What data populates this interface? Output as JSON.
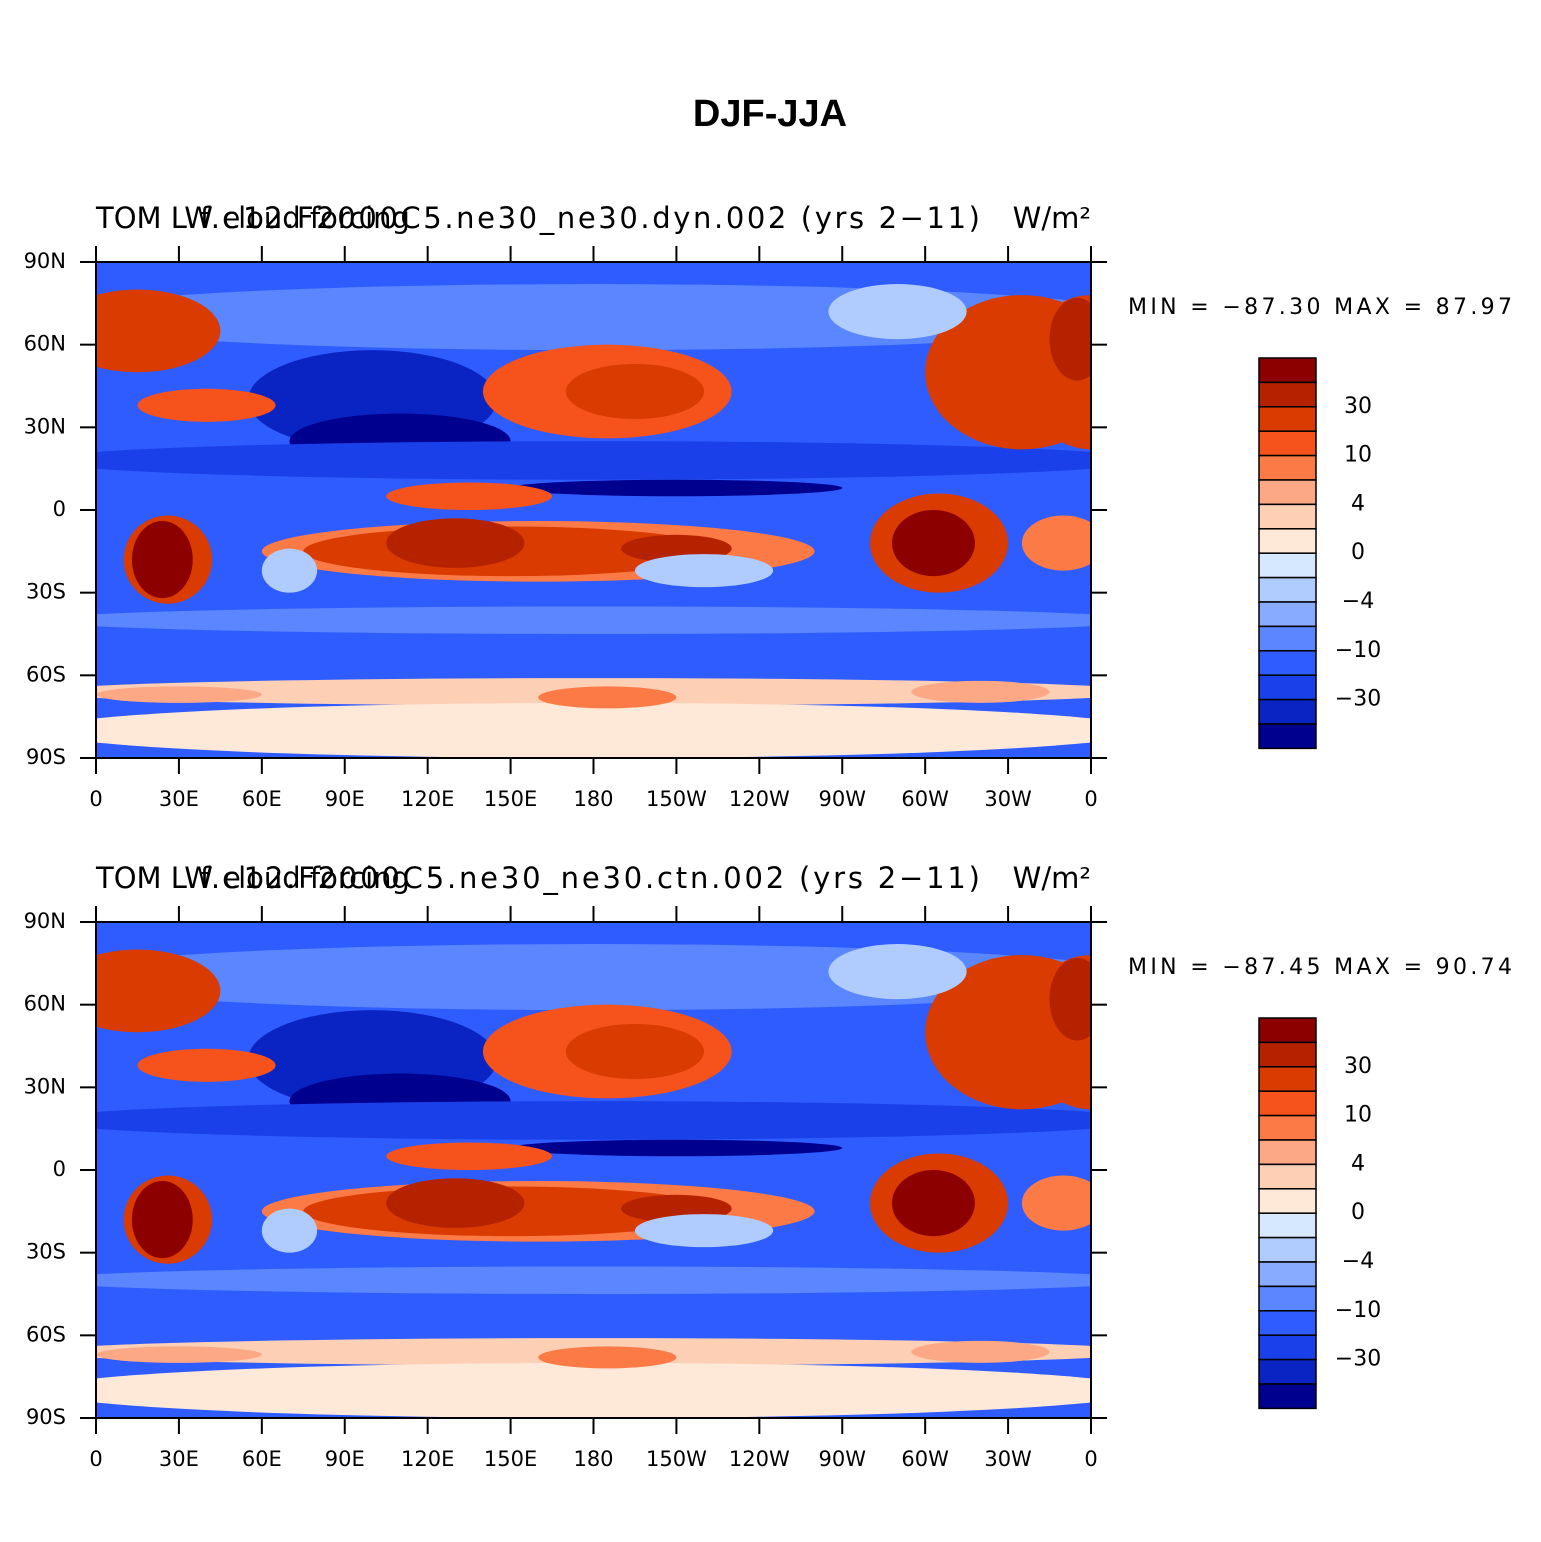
{
  "title": "DJF-JJA",
  "colorbar": {
    "colors": [
      "#8c0000",
      "#b52200",
      "#d93b00",
      "#f5521c",
      "#fb7a45",
      "#fca884",
      "#fdcfb4",
      "#fee8d8",
      "#d6e8ff",
      "#b0ccff",
      "#88aaff",
      "#5a86ff",
      "#2f5cff",
      "#1a40ea",
      "#0a24c4",
      "#00008f"
    ],
    "labels": [
      "30",
      "10",
      "4",
      "0",
      "−4",
      "−10",
      "−30"
    ]
  },
  "panels": [
    {
      "left_title": "TOM LW cloud forcing",
      "center_title": "f.e12.F2000C5.ne30_ne30.dyn.002 (yrs 2−11)",
      "units": "W/m²",
      "stats": "MIN = −87.30  MAX =  87.97",
      "xlim": [
        0,
        360
      ],
      "ylim": [
        -90,
        90
      ],
      "xticks": [
        0,
        {
          "value": 30,
          "label": "30E"
        },
        {
          "value": 60,
          "label": "60E"
        },
        {
          "value": 90,
          "label": "90E"
        },
        {
          "value": 120,
          "label": "120E"
        },
        {
          "value": 150,
          "label": "150E"
        },
        180,
        {
          "value": 210,
          "label": "150W"
        },
        {
          "value": 240,
          "label": "120W"
        },
        {
          "value": 270,
          "label": "90W"
        },
        {
          "value": 300,
          "label": "60W"
        },
        {
          "value": 330,
          "label": "30W"
        },
        {
          "value": 360,
          "label": "0"
        }
      ],
      "yticks": [
        {
          "value": 90,
          "label": "90N"
        },
        {
          "value": 60,
          "label": "60N"
        },
        {
          "value": 30,
          "label": "30N"
        },
        0,
        {
          "value": -30,
          "label": "30S"
        },
        {
          "value": -60,
          "label": "60S"
        },
        {
          "value": -90,
          "label": "90S"
        }
      ]
    },
    {
      "left_title": "TOM LW cloud forcing",
      "center_title": "f.e12.F2000C5.ne30_ne30.ctn.002 (yrs 2−11)",
      "units": "W/m²",
      "stats": "MIN = −87.45  MAX =  90.74",
      "xlim": [
        0,
        360
      ],
      "ylim": [
        -90,
        90
      ],
      "xticks": [
        0,
        {
          "value": 30,
          "label": "30E"
        },
        {
          "value": 60,
          "label": "60E"
        },
        {
          "value": 90,
          "label": "90E"
        },
        {
          "value": 120,
          "label": "120E"
        },
        {
          "value": 150,
          "label": "150E"
        },
        180,
        {
          "value": 210,
          "label": "150W"
        },
        {
          "value": 240,
          "label": "120W"
        },
        {
          "value": 270,
          "label": "90W"
        },
        {
          "value": 300,
          "label": "60W"
        },
        {
          "value": 330,
          "label": "30W"
        },
        {
          "value": 360,
          "label": "0"
        }
      ],
      "yticks": [
        {
          "value": 90,
          "label": "90N"
        },
        {
          "value": 60,
          "label": "60N"
        },
        {
          "value": 30,
          "label": "30N"
        },
        0,
        {
          "value": -30,
          "label": "30S"
        },
        {
          "value": -60,
          "label": "60S"
        },
        {
          "value": -90,
          "label": "90S"
        }
      ]
    }
  ]
}
